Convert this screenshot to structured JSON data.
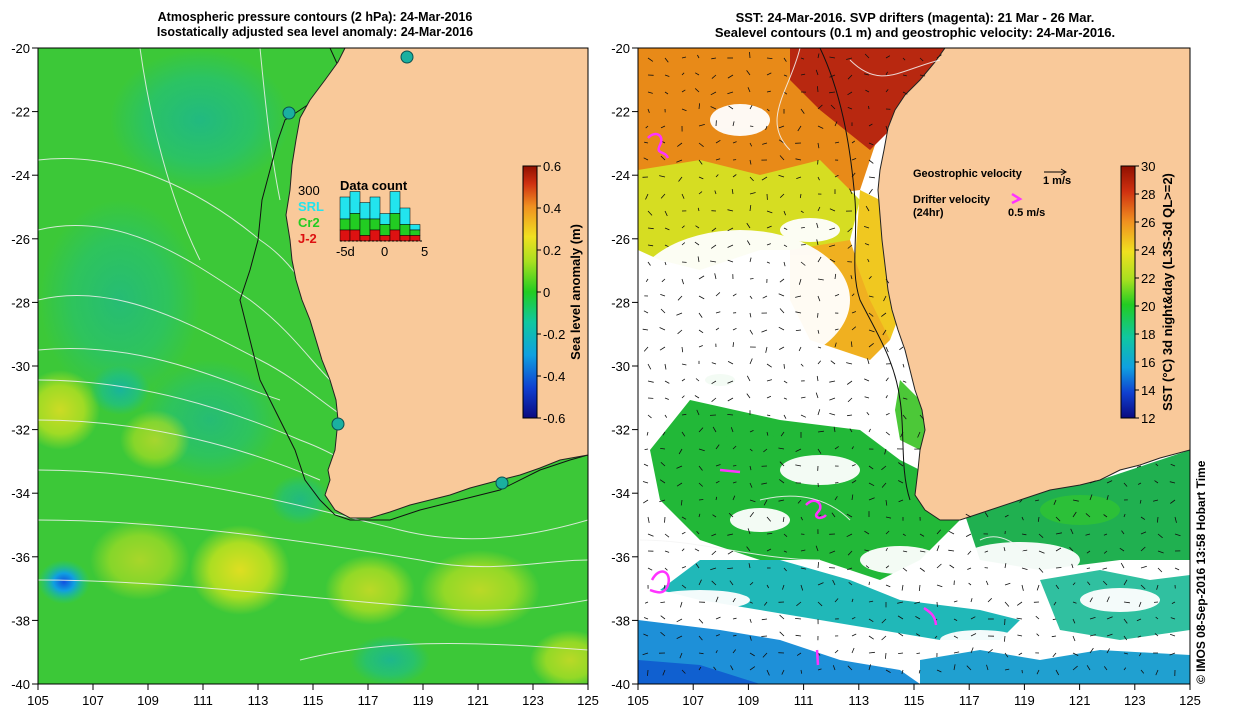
{
  "left_panel": {
    "title_line1": "Atmospheric pressure contours (2 hPa): 24-Mar-2016",
    "title_line2": "Isostatically adjusted sea level anomaly: 24-Mar-2016",
    "x_ticks": [
      "105",
      "107",
      "109",
      "111",
      "113",
      "115",
      "117",
      "119",
      "121",
      "123",
      "125"
    ],
    "y_ticks": [
      "-20",
      "-22",
      "-24",
      "-26",
      "-28",
      "-30",
      "-32",
      "-34",
      "-36",
      "-38",
      "-40"
    ],
    "colorbar": {
      "label": "Sea level anomaly (m)",
      "ticks": [
        "0.6",
        "0.4",
        "0.2",
        "0",
        "-0.2",
        "-0.4",
        "-0.6"
      ]
    },
    "inset": {
      "title": "Data count",
      "scale_label": "300",
      "legend": [
        {
          "label": "SRL",
          "color": "#22e4ee"
        },
        {
          "label": "Cr2",
          "color": "#22cc22"
        },
        {
          "label": "J-2",
          "color": "#dd1111"
        }
      ],
      "axis_labels": [
        "-5d",
        "0",
        "5"
      ],
      "bar_totals": [
        8,
        9,
        7,
        8,
        5,
        9,
        6,
        3
      ],
      "bar_green": [
        4,
        5,
        4,
        4,
        3,
        5,
        3,
        2
      ],
      "bar_red": [
        2,
        2,
        1,
        2,
        1,
        2,
        1,
        1
      ]
    }
  },
  "right_panel": {
    "title_line1": "SST: 24-Mar-2016. SVP drifters (magenta): 21 Mar - 26 Mar.",
    "title_line2": "Sealevel contours (0.1 m) and geostrophic velocity: 24-Mar-2016.",
    "x_ticks": [
      "105",
      "107",
      "109",
      "111",
      "113",
      "115",
      "117",
      "119",
      "121",
      "123",
      "125"
    ],
    "y_ticks": [
      "-20",
      "-22",
      "-24",
      "-26",
      "-28",
      "-30",
      "-32",
      "-34",
      "-36",
      "-38",
      "-40"
    ],
    "colorbar": {
      "label": "SST (°C) 3d night&day (L3S-3d QL>=2)",
      "ticks": [
        "30",
        "28",
        "26",
        "24",
        "22",
        "20",
        "18",
        "16",
        "14",
        "12"
      ]
    },
    "legend": {
      "geo_label": "Geostrophic velocity",
      "geo_value": "1 m/s",
      "drifter_label": "Drifter velocity",
      "drifter_sub": "(24hr)",
      "drifter_value": "0.5 m/s"
    },
    "credit": "© IMOS 08-Sep-2016 13:58 Hobart Time"
  },
  "colors": {
    "land": "#f9c99a",
    "coast": "#000000",
    "drifter": "#ff33ff"
  }
}
